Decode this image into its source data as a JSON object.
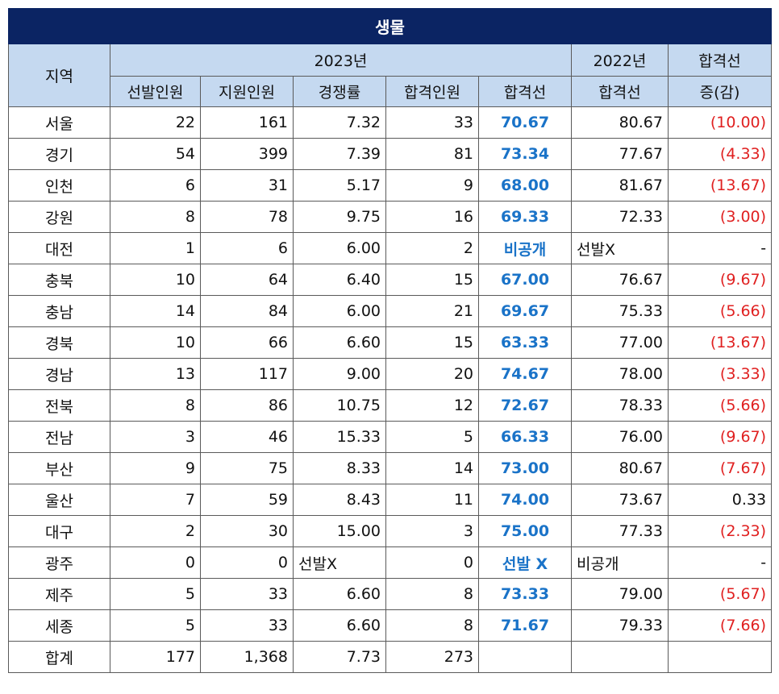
{
  "title": "생물",
  "headers": {
    "region": "지역",
    "year2023": "2023년",
    "year2022": "2022년",
    "diff_top": "합격선",
    "diff_bottom": "증(감)",
    "cols2023": [
      "선발인원",
      "지원인원",
      "경쟁률",
      "합격인원",
      "합격선"
    ],
    "col2022": "합격선"
  },
  "rows": [
    {
      "region": "서울",
      "select": "22",
      "apply": "161",
      "ratio": "7.32",
      "passed": "33",
      "cut2023": "70.67",
      "cut2022": "80.67",
      "diff": "(10.00)",
      "diff_neg": true
    },
    {
      "region": "경기",
      "select": "54",
      "apply": "399",
      "ratio": "7.39",
      "passed": "81",
      "cut2023": "73.34",
      "cut2022": "77.67",
      "diff": "(4.33)",
      "diff_neg": true
    },
    {
      "region": "인천",
      "select": "6",
      "apply": "31",
      "ratio": "5.17",
      "passed": "9",
      "cut2023": "68.00",
      "cut2022": "81.67",
      "diff": "(13.67)",
      "diff_neg": true
    },
    {
      "region": "강원",
      "select": "8",
      "apply": "78",
      "ratio": "9.75",
      "passed": "16",
      "cut2023": "69.33",
      "cut2022": "72.33",
      "diff": "(3.00)",
      "diff_neg": true
    },
    {
      "region": "대전",
      "select": "1",
      "apply": "6",
      "ratio": "6.00",
      "passed": "2",
      "cut2023": "비공개",
      "cut2022": "선발X",
      "diff": "-",
      "diff_neg": false
    },
    {
      "region": "충북",
      "select": "10",
      "apply": "64",
      "ratio": "6.40",
      "passed": "15",
      "cut2023": "67.00",
      "cut2022": "76.67",
      "diff": "(9.67)",
      "diff_neg": true
    },
    {
      "region": "충남",
      "select": "14",
      "apply": "84",
      "ratio": "6.00",
      "passed": "21",
      "cut2023": "69.67",
      "cut2022": "75.33",
      "diff": "(5.66)",
      "diff_neg": true
    },
    {
      "region": "경북",
      "select": "10",
      "apply": "66",
      "ratio": "6.60",
      "passed": "15",
      "cut2023": "63.33",
      "cut2022": "77.00",
      "diff": "(13.67)",
      "diff_neg": true
    },
    {
      "region": "경남",
      "select": "13",
      "apply": "117",
      "ratio": "9.00",
      "passed": "20",
      "cut2023": "74.67",
      "cut2022": "78.00",
      "diff": "(3.33)",
      "diff_neg": true
    },
    {
      "region": "전북",
      "select": "8",
      "apply": "86",
      "ratio": "10.75",
      "passed": "12",
      "cut2023": "72.67",
      "cut2022": "78.33",
      "diff": "(5.66)",
      "diff_neg": true
    },
    {
      "region": "전남",
      "select": "3",
      "apply": "46",
      "ratio": "15.33",
      "passed": "5",
      "cut2023": "66.33",
      "cut2022": "76.00",
      "diff": "(9.67)",
      "diff_neg": true
    },
    {
      "region": "부산",
      "select": "9",
      "apply": "75",
      "ratio": "8.33",
      "passed": "14",
      "cut2023": "73.00",
      "cut2022": "80.67",
      "diff": "(7.67)",
      "diff_neg": true
    },
    {
      "region": "울산",
      "select": "7",
      "apply": "59",
      "ratio": "8.43",
      "passed": "11",
      "cut2023": "74.00",
      "cut2022": "73.67",
      "diff": "0.33",
      "diff_neg": false
    },
    {
      "region": "대구",
      "select": "2",
      "apply": "30",
      "ratio": "15.00",
      "passed": "3",
      "cut2023": "75.00",
      "cut2022": "77.33",
      "diff": "(2.33)",
      "diff_neg": true
    },
    {
      "region": "광주",
      "select": "0",
      "apply": "0",
      "ratio": "선발X",
      "passed": "0",
      "cut2023": "선발 X",
      "cut2022": "비공개",
      "diff": "-",
      "diff_neg": false
    },
    {
      "region": "제주",
      "select": "5",
      "apply": "33",
      "ratio": "6.60",
      "passed": "8",
      "cut2023": "73.33",
      "cut2022": "79.00",
      "diff": "(5.67)",
      "diff_neg": true
    },
    {
      "region": "세종",
      "select": "5",
      "apply": "33",
      "ratio": "6.60",
      "passed": "8",
      "cut2023": "71.67",
      "cut2022": "79.33",
      "diff": "(7.66)",
      "diff_neg": true
    }
  ],
  "total": {
    "region": "합계",
    "select": "177",
    "apply": "1,368",
    "ratio": "7.73",
    "passed": "273",
    "cut2023": "",
    "cut2022": "",
    "diff": ""
  },
  "colors": {
    "title_bg": "#0b2463",
    "header_bg": "#c5d9f0",
    "pass_line": "#1a73c8",
    "negative": "#e02020"
  }
}
